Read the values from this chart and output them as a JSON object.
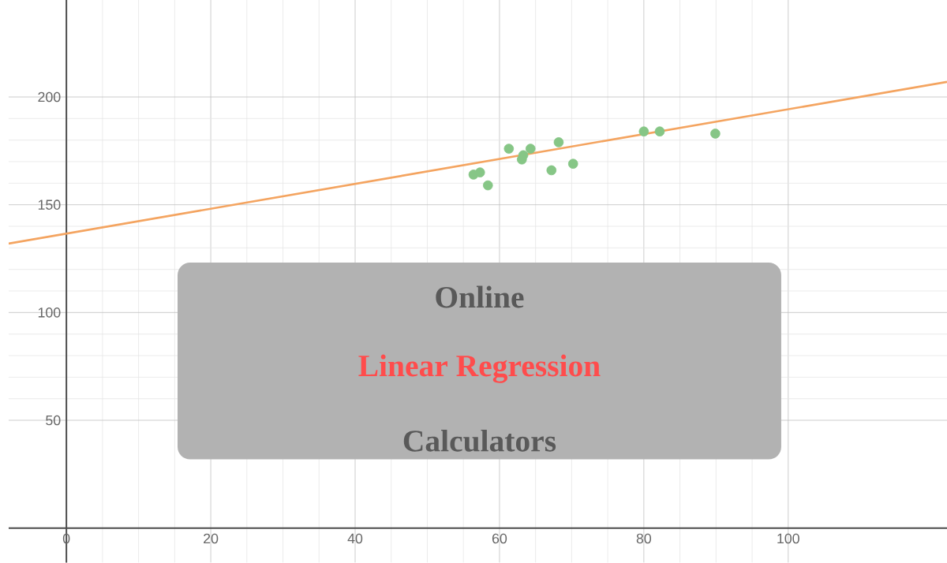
{
  "chart_data": {
    "type": "scatter",
    "annotations": [
      "Online",
      "Linear Regression",
      "Calculators"
    ],
    "series": [
      {
        "color": "#86c686",
        "x": [
          56.4,
          57.3,
          58.4,
          61.3,
          63.3,
          64.3,
          63.1,
          68.2,
          67.2,
          70.2,
          80.0,
          82.2,
          89.9
        ],
        "values": [
          164,
          165,
          159,
          176,
          173,
          176,
          171,
          179,
          166,
          169,
          184,
          184,
          183
        ],
        "marker": "circle"
      },
      {
        "type": "line",
        "color": "#f4a460",
        "x": [
          -8,
          122
        ],
        "values": [
          132,
          207
        ],
        "marker": "none"
      }
    ],
    "xlim": [
      -8,
      122
    ],
    "ylim": [
      -16,
      245
    ],
    "xticks": [
      0,
      20,
      40,
      60,
      80,
      100
    ],
    "yticks": [
      50,
      100,
      150,
      200
    ],
    "grid": true
  }
}
